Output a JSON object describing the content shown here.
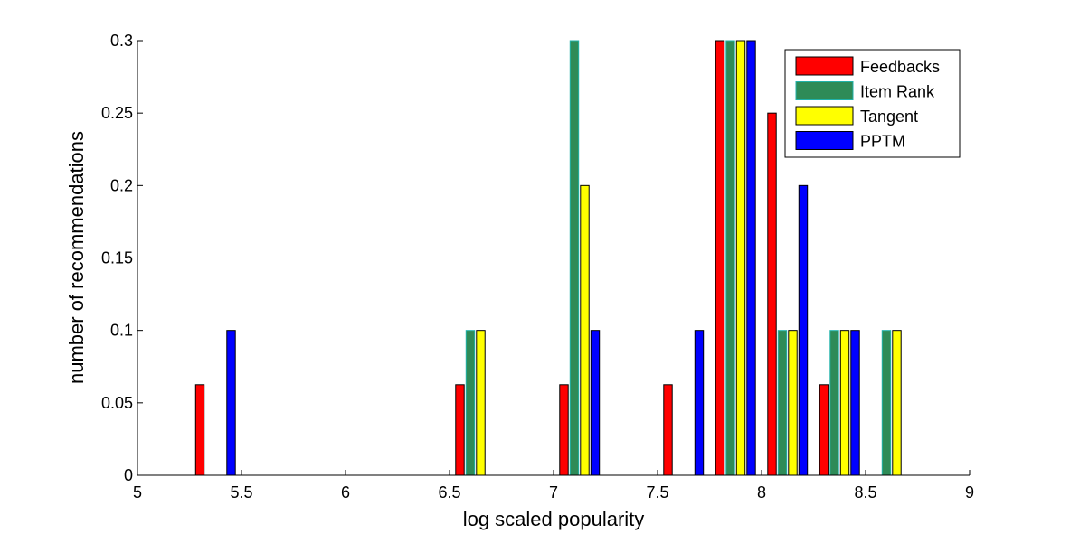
{
  "chart_data": {
    "type": "bar",
    "xlabel": "log scaled popularity",
    "ylabel": "number of recommendations",
    "xlim": [
      5,
      9
    ],
    "ylim": [
      0,
      0.3
    ],
    "x_ticks": [
      "5",
      "5.5",
      "6",
      "6.5",
      "7",
      "7.5",
      "8",
      "8.5",
      "9"
    ],
    "y_ticks": [
      "0",
      "0.05",
      "0.1",
      "0.15",
      "0.2",
      "0.25",
      "0.3"
    ],
    "bin_centers": [
      5.125,
      5.375,
      5.625,
      5.875,
      6.125,
      6.375,
      6.625,
      7.125,
      7.375,
      7.625,
      7.875,
      8.125,
      8.375,
      8.625,
      8.875
    ],
    "legend_position": "top-right",
    "series": [
      {
        "name": "Feedbacks",
        "color": "#ff0000",
        "values": [
          0,
          0.0625,
          0,
          0,
          0,
          0,
          0.0625,
          0.0625,
          0,
          0.0625,
          0.3,
          0.25,
          0.0625,
          0,
          0
        ]
      },
      {
        "name": "Item Rank",
        "color": "#2e8b57",
        "values": [
          0,
          0,
          0,
          0,
          0,
          0,
          0.1,
          0.3,
          0,
          0,
          0.3,
          0.1,
          0.1,
          0.1,
          0
        ]
      },
      {
        "name": "Tangent",
        "color": "#ffff00",
        "values": [
          0,
          0,
          0,
          0,
          0,
          0,
          0.1,
          0.2,
          0,
          0,
          0.3,
          0.1,
          0.1,
          0.1,
          0
        ]
      },
      {
        "name": "PPTM",
        "color": "#0000ff",
        "values": [
          0,
          0.1,
          0,
          0,
          0,
          0,
          0,
          0.1,
          0,
          0.1,
          0.3,
          0.2,
          0.1,
          0,
          0
        ]
      }
    ]
  }
}
